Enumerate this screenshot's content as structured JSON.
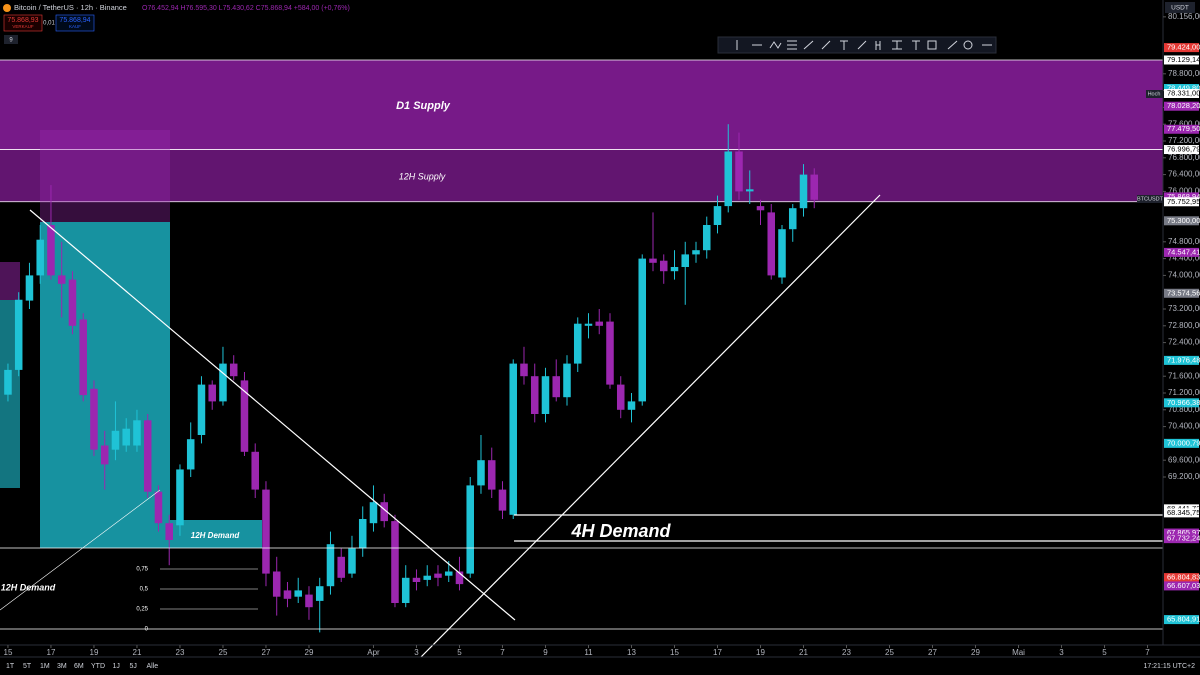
{
  "chart_data": {
    "type": "candlestick",
    "title": "Bitcoin / TetherUS · 12h · Binance",
    "ohlc": "O76.452,94 H76.595,30 L75.430,62 C75.868,94 +584,00 (+0,76%)",
    "sell_price": "75.868,93",
    "sell_label": "VERKAUF",
    "spread": "0,01",
    "buy_price": "75.868,94",
    "buy_label": "KAUF",
    "currency": "USDT",
    "interval_badge": "9",
    "symbol_tag": "BTCUSDT",
    "high_tag": "Hoch",
    "timeframes": [
      "1T",
      "5T",
      "1M",
      "3M",
      "6M",
      "YTD",
      "1J",
      "5J",
      "Alle"
    ],
    "clock": "17:21:15 UTC+2",
    "up_color": "#1fc3d6",
    "down_color": "#9c27b0",
    "annotations": [
      {
        "text": "D1 Supply"
      },
      {
        "text": "12H Supply"
      },
      {
        "text": "4H Demand"
      },
      {
        "text": "12H Demand"
      },
      {
        "text": "12H Demand"
      }
    ],
    "fib_labels": [
      "0,75",
      "0,5",
      "0,25",
      "0"
    ],
    "zones": [
      {
        "name": "D1 Supply",
        "top": 79129.14,
        "bottom": 76996.79
      },
      {
        "name": "12H Supply",
        "top": 76996.79,
        "bottom": 75752.95
      }
    ],
    "xlim": [
      -0.37,
      53.72
    ],
    "ylim": [
      65200,
      80200
    ],
    "x": [
      0,
      0.5,
      1,
      1.5,
      2,
      2.5,
      3,
      3.5,
      4,
      4.5,
      5,
      5.5,
      6,
      6.5,
      7,
      7.5,
      8,
      8.5,
      9,
      9.5,
      10,
      10.5,
      11,
      11.5,
      12,
      12.5,
      13,
      13.5,
      14,
      14.5,
      15,
      15.5,
      16,
      16.5,
      17,
      17.5,
      18,
      18.5,
      19,
      19.5,
      20,
      20.5,
      21,
      21.5,
      22,
      22.5,
      23,
      23.5,
      24,
      24.5,
      25,
      25.5,
      26,
      26.5,
      27,
      27.5,
      28,
      28.5,
      29,
      29.5,
      30,
      30.5,
      31,
      31.5,
      32,
      32.5,
      33,
      33.5,
      34,
      34.5,
      35,
      35.5,
      36,
      36.5,
      37,
      37.5
    ],
    "open": [
      71160,
      71750,
      73400,
      74000,
      75200,
      74000,
      73900,
      72950,
      71300,
      69950,
      69850,
      69950,
      69950,
      70550,
      68850,
      68100,
      68050,
      69380,
      70200,
      71400,
      71000,
      71900,
      71500,
      69800,
      68900,
      66950,
      66500,
      66350,
      66400,
      66250,
      66600,
      67300,
      66900,
      67500,
      68100,
      68600,
      68150,
      66200,
      66800,
      66750,
      66900,
      66850,
      66950,
      66900,
      69000,
      69600,
      68900,
      68300,
      71900,
      71600,
      70700,
      71600,
      71100,
      71900,
      72800,
      72900,
      72900,
      71400,
      70800,
      71000,
      74400,
      74350,
      74100,
      74200,
      74500,
      74600,
      75200,
      75650,
      76950,
      76000,
      75650,
      75500,
      73950,
      75100,
      75600,
      76400
    ],
    "high": [
      71900,
      73600,
      74300,
      75200,
      76150,
      74800,
      74100,
      73100,
      71500,
      70300,
      71000,
      70600,
      70800,
      70700,
      69000,
      68300,
      69500,
      70500,
      71600,
      71500,
      72300,
      72100,
      71700,
      70000,
      69100,
      67300,
      66700,
      66800,
      66600,
      66800,
      67900,
      67500,
      67800,
      68500,
      69000,
      68800,
      68300,
      67100,
      67000,
      67100,
      67100,
      67200,
      67300,
      69200,
      70200,
      69900,
      69100,
      72000,
      72300,
      71900,
      71800,
      72000,
      72100,
      73000,
      73100,
      73200,
      73100,
      71600,
      71200,
      74500,
      75500,
      74500,
      74600,
      74800,
      74800,
      75400,
      75900,
      77600,
      77400,
      76500,
      75800,
      75700,
      75200,
      75700,
      76650,
      76550
    ],
    "low": [
      71000,
      71600,
      73200,
      73800,
      73900,
      73000,
      72600,
      71000,
      69700,
      68900,
      69600,
      69800,
      69800,
      68700,
      67900,
      67100,
      67800,
      69200,
      70000,
      70800,
      70900,
      71500,
      69700,
      68700,
      66600,
      65900,
      66100,
      66200,
      65800,
      65500,
      66400,
      66700,
      66800,
      67300,
      67900,
      68000,
      66100,
      66100,
      66500,
      66600,
      66600,
      66700,
      66500,
      66800,
      68800,
      68700,
      68200,
      68200,
      71400,
      70500,
      70500,
      71000,
      70900,
      71700,
      72500,
      72600,
      71300,
      70600,
      70500,
      70900,
      74100,
      73800,
      73900,
      73300,
      74300,
      74400,
      75000,
      75500,
      75800,
      75700,
      75200,
      73900,
      73800,
      74800,
      75400,
      75600
    ],
    "close": [
      71750,
      73420,
      74000,
      74850,
      74000,
      73800,
      72800,
      71150,
      69850,
      69500,
      70300,
      70350,
      70550,
      68850,
      68100,
      67700,
      69380,
      70100,
      71400,
      71000,
      71900,
      71600,
      69800,
      68900,
      66900,
      66350,
      66300,
      66500,
      66100,
      66600,
      67600,
      66800,
      67500,
      68200,
      68600,
      68150,
      66200,
      66800,
      66700,
      66850,
      66800,
      66950,
      66650,
      69000,
      69600,
      68900,
      68400,
      71900,
      71600,
      70700,
      71600,
      71100,
      71900,
      72850,
      72850,
      72800,
      71400,
      70800,
      71000,
      74400,
      74300,
      74100,
      74200,
      74500,
      74600,
      75200,
      75650,
      76950,
      76000,
      76050,
      75550,
      74000,
      75100,
      75600,
      76400,
      75800
    ],
    "xticks": [
      {
        "value": 0,
        "label": "15"
      },
      {
        "value": 2,
        "label": "17"
      },
      {
        "value": 4,
        "label": "19"
      },
      {
        "value": 6,
        "label": "21"
      },
      {
        "value": 8,
        "label": "23"
      },
      {
        "value": 10,
        "label": "25"
      },
      {
        "value": 12,
        "label": "27"
      },
      {
        "value": 14,
        "label": "29"
      },
      {
        "value": 17,
        "label": "Apr"
      },
      {
        "value": 19,
        "label": "3"
      },
      {
        "value": 21,
        "label": "5"
      },
      {
        "value": 23,
        "label": "7"
      },
      {
        "value": 25,
        "label": "9"
      },
      {
        "value": 27,
        "label": "11"
      },
      {
        "value": 29,
        "label": "13"
      },
      {
        "value": 31,
        "label": "15"
      },
      {
        "value": 33,
        "label": "17"
      },
      {
        "value": 35,
        "label": "19"
      },
      {
        "value": 37,
        "label": "21"
      },
      {
        "value": 39,
        "label": "23"
      },
      {
        "value": 41,
        "label": "25"
      },
      {
        "value": 43,
        "label": "27"
      },
      {
        "value": 45,
        "label": "29"
      },
      {
        "value": 47,
        "label": "Mai"
      },
      {
        "value": 49,
        "label": "3"
      },
      {
        "value": 51,
        "label": "5"
      },
      {
        "value": 53,
        "label": "7"
      }
    ],
    "yticks": [
      {
        "value": 69200,
        "label": "69.200,00"
      },
      {
        "value": 69600,
        "label": "69.600,00"
      },
      {
        "value": 70400,
        "label": "70.400,00"
      },
      {
        "value": 70800,
        "label": "70.800,00"
      },
      {
        "value": 71200,
        "label": "71.200,00"
      },
      {
        "value": 71600,
        "label": "71.600,00"
      },
      {
        "value": 72400,
        "label": "72.400,00"
      },
      {
        "value": 72800,
        "label": "72.800,00"
      },
      {
        "value": 73200,
        "label": "73.200,00"
      },
      {
        "value": 74000,
        "label": "74.000,00"
      },
      {
        "value": 74400,
        "label": "74.400,00"
      },
      {
        "value": 74800,
        "label": "74.800,00"
      },
      {
        "value": 76000,
        "label": "76.000,00"
      },
      {
        "value": 76400,
        "label": "76.400,00"
      },
      {
        "value": 76800,
        "label": "76.800,00"
      },
      {
        "value": 77200,
        "label": "77.200,00"
      },
      {
        "value": 77600,
        "label": "77.600,00"
      },
      {
        "value": 78000,
        "label": "78.000,00"
      },
      {
        "value": 78400,
        "label": "78.400,00"
      },
      {
        "value": 78800,
        "label": "78.800,00"
      },
      {
        "value": 80156,
        "label": "80.156,00"
      }
    ],
    "price_labels": [
      {
        "value": 79424,
        "label": "79.424,00",
        "color": "#e53935"
      },
      {
        "value": 79129.14,
        "label": "79.129,14",
        "color": "#ffffff"
      },
      {
        "value": 78449.8,
        "label": "78.449,80",
        "color": "#1fc3d6"
      },
      {
        "value": 78331,
        "label": "78.331,00",
        "color": "#ffffff"
      },
      {
        "value": 78028.2,
        "label": "78.028,20",
        "color": "#9c27b0"
      },
      {
        "value": 77479.5,
        "label": "77.479,50",
        "color": "#9c27b0"
      },
      {
        "value": 76996.79,
        "label": "76.996,79",
        "color": "#ffffff"
      },
      {
        "value": 75868.94,
        "label": "75.868,94",
        "color": "#9c27b0"
      },
      {
        "value": 75752.95,
        "label": "75.752,95",
        "color": "#ffffff"
      },
      {
        "value": 75300,
        "label": "75.300,00",
        "color": "#787b86"
      },
      {
        "value": 74547.41,
        "label": "74.547,41",
        "color": "#9c27b0"
      },
      {
        "value": 73574.56,
        "label": "73.574,56",
        "color": "#787b86"
      },
      {
        "value": 71976.48,
        "label": "71.976,48",
        "color": "#1fc3d6"
      },
      {
        "value": 70966.38,
        "label": "70.966,38",
        "color": "#1fc3d6"
      },
      {
        "value": 70000.79,
        "label": "70.000,79",
        "color": "#1fc3d6"
      },
      {
        "value": 68441.72,
        "label": "68.441,72",
        "color": "#ffffff"
      },
      {
        "value": 68345.75,
        "label": "68.345,75",
        "color": "#ffffff"
      },
      {
        "value": 67865.97,
        "label": "67.865,97",
        "color": "#9c27b0"
      },
      {
        "value": 67732.24,
        "label": "67.732,24",
        "color": "#9c27b0"
      },
      {
        "value": 66804.83,
        "label": "66.804,83",
        "color": "#e53935"
      },
      {
        "value": 66607.03,
        "label": "66.607,03",
        "color": "#9c27b0"
      },
      {
        "value": 65804.91,
        "label": "65.804,91",
        "color": "#1fc3d6"
      }
    ]
  }
}
